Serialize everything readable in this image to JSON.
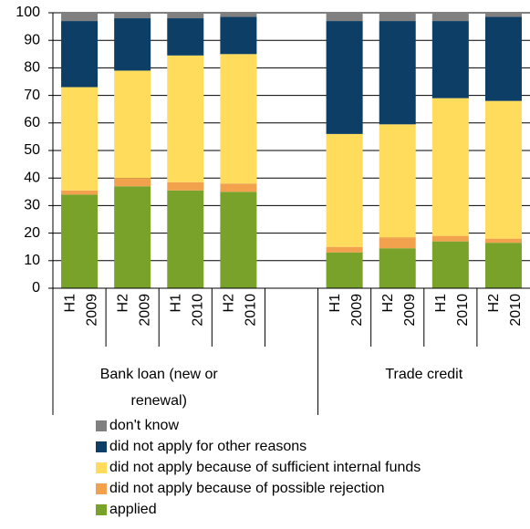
{
  "chart_data": {
    "type": "stacked_bar",
    "categories": [
      [
        "H1",
        "2009"
      ],
      [
        "H2",
        "2009"
      ],
      [
        "H1",
        "2010"
      ],
      [
        "H2",
        "2010"
      ],
      null,
      [
        "H1",
        "2009"
      ],
      [
        "H2",
        "2009"
      ],
      [
        "H1",
        "2010"
      ],
      [
        "H2",
        "2010"
      ]
    ],
    "groups": [
      "Bank loan (new or renewal)",
      "Trade credit"
    ],
    "series": [
      {
        "name": "applied",
        "color": "#78a22a",
        "values": [
          34,
          37,
          35.5,
          35,
          null,
          13,
          14.5,
          17,
          16.5
        ]
      },
      {
        "name": "did not apply because of possible rejection",
        "color": "#f2a14c",
        "values": [
          1.5,
          3,
          3,
          3,
          null,
          2,
          4,
          2,
          1.5
        ]
      },
      {
        "name": "did not apply because of sufficient internal funds",
        "color": "#ffdc5c",
        "values": [
          37.5,
          39,
          46,
          47,
          null,
          41,
          41,
          50,
          50
        ]
      },
      {
        "name": "did not apply for other reasons",
        "color": "#0d3e66",
        "values": [
          24,
          19,
          13.5,
          13.5,
          null,
          41,
          37.5,
          28,
          30.5
        ]
      },
      {
        "name": "don't know",
        "color": "#808080",
        "values": [
          3,
          2,
          2,
          1.5,
          null,
          3,
          3,
          3,
          1.5
        ]
      }
    ],
    "ylim": [
      0,
      100
    ],
    "yticks": [
      0,
      10,
      20,
      30,
      40,
      50,
      60,
      70,
      80,
      90,
      100
    ],
    "grid": true
  }
}
